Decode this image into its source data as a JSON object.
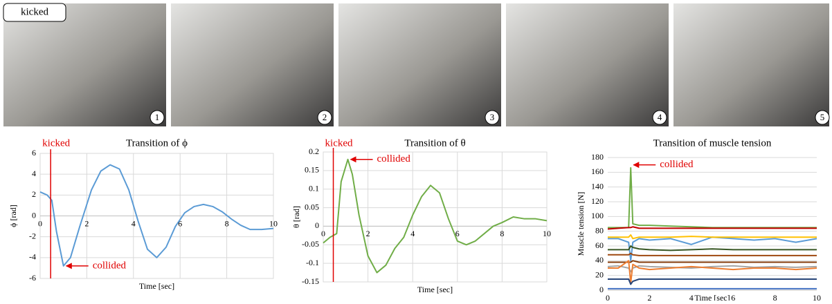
{
  "photos": {
    "label": "kicked",
    "numbers": [
      "1",
      "2",
      "3",
      "4",
      "5"
    ]
  },
  "chart_data": [
    {
      "type": "line",
      "title": "Transition of ϕ",
      "xlabel": "Time [sec]",
      "ylabel": "ϕ [rad]",
      "x": [
        0,
        0.3,
        0.5,
        0.7,
        1.0,
        1.3,
        1.7,
        2.2,
        2.6,
        3.0,
        3.4,
        3.8,
        4.2,
        4.6,
        5.0,
        5.4,
        5.8,
        6.2,
        6.6,
        7.0,
        7.4,
        7.8,
        8.2,
        8.6,
        9.0,
        9.5,
        10
      ],
      "series": [
        {
          "color": "#5b9bd5",
          "values": [
            2.3,
            2.0,
            1.5,
            -1.5,
            -4.8,
            -4.0,
            -1.0,
            2.5,
            4.3,
            4.9,
            4.5,
            2.5,
            -0.5,
            -3.2,
            -4.0,
            -3.0,
            -1.0,
            0.3,
            0.9,
            1.1,
            0.9,
            0.4,
            -0.3,
            -0.9,
            -1.3,
            -1.3,
            -1.2
          ]
        }
      ],
      "xlim": [
        0,
        10
      ],
      "ylim": [
        -6,
        6
      ],
      "xticks": [
        0,
        2,
        4,
        6,
        8,
        10
      ],
      "yticks": [
        -6,
        -4,
        -2,
        0,
        2,
        4,
        6
      ],
      "grid": "both",
      "x_axis_at_zero": true,
      "events": [
        {
          "label": "kicked",
          "x": 0.45
        },
        {
          "label": "collided",
          "x": 1.0,
          "y": -4.8
        }
      ]
    },
    {
      "type": "line",
      "title": "Transition of θ",
      "xlabel": "Time [sec]",
      "ylabel": "θ [rad]",
      "x": [
        0,
        0.3,
        0.6,
        0.8,
        1.0,
        1.1,
        1.3,
        1.6,
        2.0,
        2.4,
        2.8,
        3.2,
        3.6,
        4.0,
        4.4,
        4.8,
        5.2,
        5.6,
        6.0,
        6.4,
        6.8,
        7.2,
        7.6,
        8.0,
        8.5,
        9.0,
        9.5,
        10
      ],
      "series": [
        {
          "color": "#70ad47",
          "values": [
            -0.045,
            -0.03,
            -0.02,
            0.12,
            0.16,
            0.18,
            0.14,
            0.03,
            -0.08,
            -0.125,
            -0.105,
            -0.06,
            -0.03,
            0.03,
            0.08,
            0.11,
            0.09,
            0.02,
            -0.04,
            -0.05,
            -0.04,
            -0.02,
            0.0,
            0.01,
            0.025,
            0.02,
            0.02,
            0.015
          ]
        }
      ],
      "xlim": [
        0,
        10
      ],
      "ylim": [
        -0.15,
        0.2
      ],
      "xticks": [
        0,
        2,
        4,
        6,
        8,
        10
      ],
      "yticks": [
        -0.15,
        -0.1,
        -0.05,
        0,
        0.05,
        0.1,
        0.15,
        0.2
      ],
      "grid": "both",
      "x_axis_at_zero": true,
      "events": [
        {
          "label": "kicked",
          "x": 0.45
        },
        {
          "label": "collided",
          "x": 1.1,
          "y": 0.18
        }
      ]
    },
    {
      "type": "line",
      "title": "Transition of muscle tension",
      "xlabel": "Time [sec]",
      "ylabel": "Muscle tension [N]",
      "x": [
        0,
        0.5,
        1,
        1.1,
        1.2,
        1.5,
        2,
        3,
        4,
        5,
        6,
        7,
        8,
        9,
        10
      ],
      "series": [
        {
          "color": "#70ad47",
          "values": [
            85,
            85,
            85,
            166,
            90,
            88,
            88,
            87,
            86,
            85,
            85,
            85,
            85,
            85,
            85
          ]
        },
        {
          "color": "#c00000",
          "values": [
            83,
            84,
            85,
            85,
            86,
            84,
            84,
            84,
            84,
            84,
            84,
            84,
            84,
            84,
            84
          ]
        },
        {
          "color": "#5b9bd5",
          "values": [
            70,
            70,
            65,
            40,
            65,
            70,
            68,
            70,
            62,
            72,
            70,
            68,
            70,
            65,
            70
          ]
        },
        {
          "color": "#ffc000",
          "values": [
            72,
            72,
            72,
            75,
            70,
            72,
            72,
            72,
            73,
            72,
            72,
            72,
            72,
            72,
            72
          ]
        },
        {
          "color": "#375623",
          "values": [
            55,
            55,
            55,
            60,
            58,
            56,
            55,
            54,
            55,
            56,
            55,
            55,
            55,
            55,
            55
          ]
        },
        {
          "color": "#9e480e",
          "values": [
            48,
            48,
            48,
            50,
            48,
            47,
            47,
            47,
            47,
            47,
            47,
            47,
            47,
            47,
            47
          ]
        },
        {
          "color": "#843c0c",
          "values": [
            38,
            38,
            38,
            38,
            40,
            38,
            38,
            38,
            38,
            38,
            38,
            38,
            38,
            38,
            38
          ]
        },
        {
          "color": "#a5a5a5",
          "values": [
            32,
            33,
            30,
            25,
            30,
            33,
            32,
            31,
            30,
            32,
            33,
            31,
            32,
            31,
            32
          ]
        },
        {
          "color": "#ed7d31",
          "values": [
            30,
            30,
            40,
            10,
            35,
            30,
            28,
            30,
            32,
            30,
            28,
            30,
            30,
            28,
            30
          ]
        },
        {
          "color": "#264478",
          "values": [
            15,
            15,
            15,
            8,
            12,
            15,
            15,
            15,
            15,
            15,
            15,
            15,
            15,
            15,
            15
          ]
        },
        {
          "color": "#4472c4",
          "values": [
            2,
            2,
            2,
            2,
            2,
            2,
            2,
            2,
            2,
            2,
            2,
            2,
            2,
            2,
            2
          ]
        }
      ],
      "xlim": [
        0,
        10
      ],
      "ylim": [
        0,
        180
      ],
      "xticks": [
        0,
        2,
        4,
        6,
        8,
        10
      ],
      "yticks": [
        0,
        20,
        40,
        60,
        80,
        100,
        120,
        140,
        160,
        180
      ],
      "grid": "y",
      "x_axis_at_zero": false,
      "events": [
        {
          "label": "collided",
          "x": 1.1,
          "y": 170
        }
      ]
    }
  ]
}
